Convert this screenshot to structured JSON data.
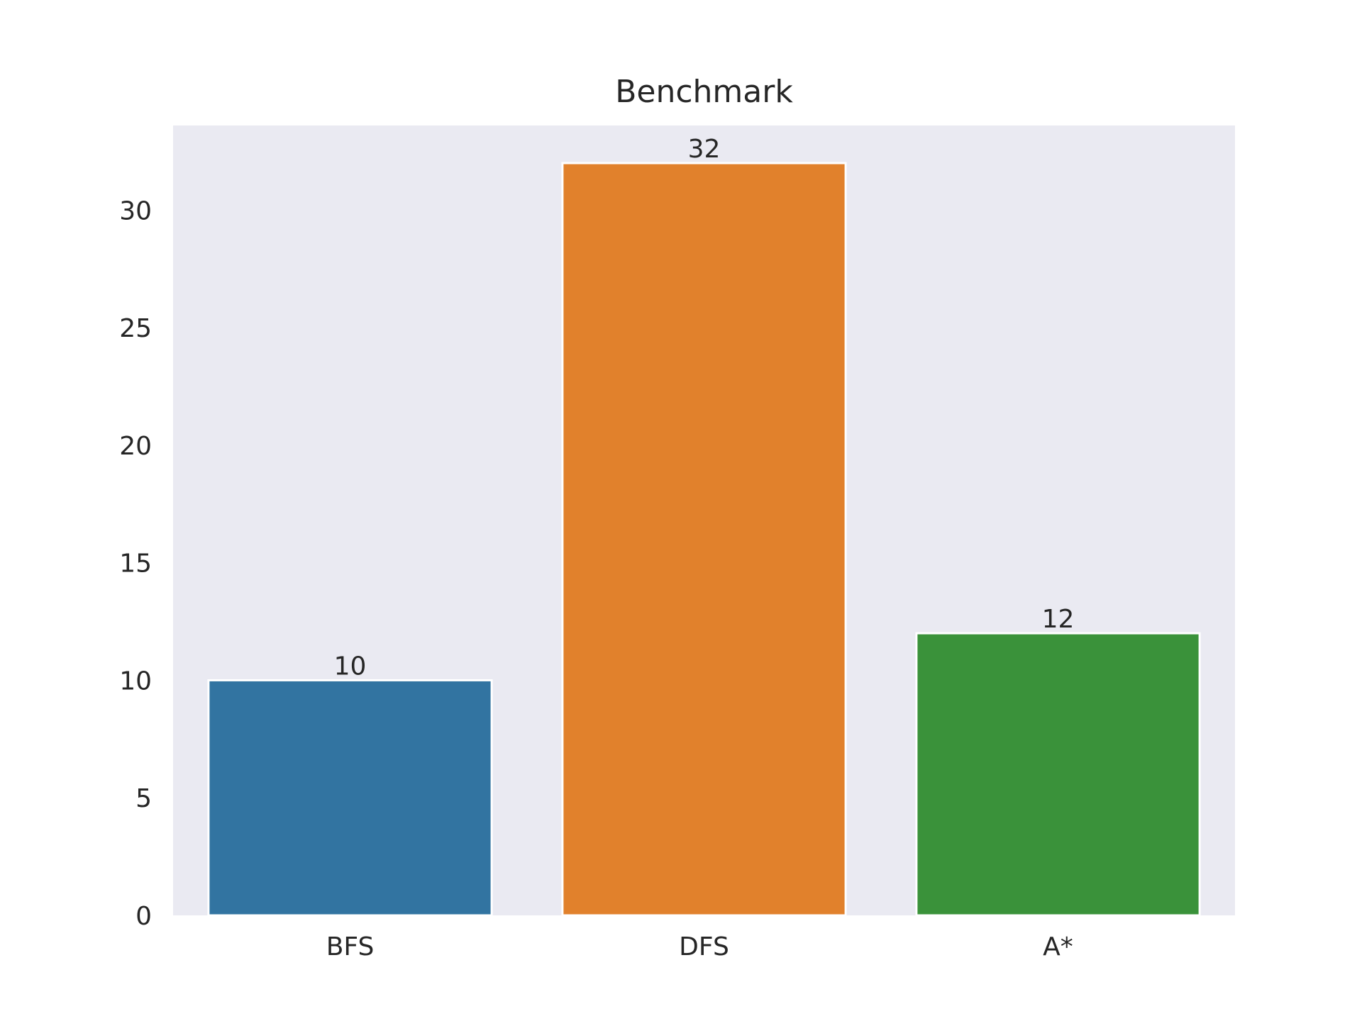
{
  "chart_data": {
    "type": "bar",
    "title": "Benchmark",
    "xlabel": "",
    "ylabel": "",
    "categories": [
      "BFS",
      "DFS",
      "A*"
    ],
    "values": [
      10,
      32,
      12
    ],
    "data_labels": [
      "10",
      "32",
      "12"
    ],
    "colors": [
      "#3274a1",
      "#e1812c",
      "#3a923a"
    ],
    "ylim": [
      0,
      33.6
    ],
    "yticks": [
      0,
      5,
      10,
      15,
      20,
      25,
      30
    ],
    "grid": false,
    "legend": "none",
    "plot_background": "#eaeaf2"
  }
}
